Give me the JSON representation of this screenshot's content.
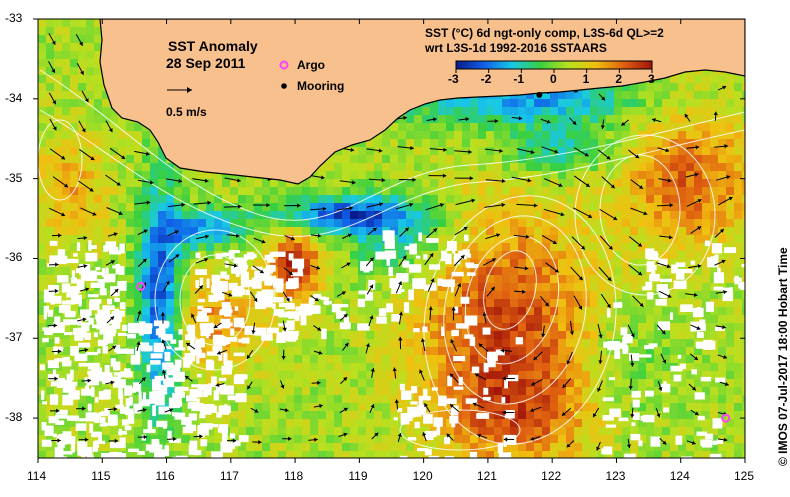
{
  "map": {
    "title_line1": "SST Anomaly",
    "title_line2": "28 Sep 2011",
    "scale_label": "0.5 m/s",
    "legend": {
      "argo": "Argo",
      "mooring": "Mooring"
    },
    "colorbar": {
      "title_line1": "SST (°C) 6d ngt-only comp, L3S-6d QL>=2",
      "title_line2": "wrt L3S-1d 1992-2016 SSTAARS",
      "ticks": [
        "-3",
        "-2",
        "-1",
        "0",
        "1",
        "2",
        "3"
      ],
      "range": [
        -3,
        3
      ]
    },
    "credit": "© IMOS 07-Jul-2017 18:00 Hobart Time",
    "lon_range": [
      114,
      125
    ],
    "lat_range": [
      -38.5,
      -33
    ],
    "lon_ticks": [
      "114",
      "115",
      "116",
      "117",
      "118",
      "119",
      "120",
      "121",
      "122",
      "123",
      "124",
      "125"
    ],
    "lat_ticks": [
      "-33",
      "-34",
      "-35",
      "-36",
      "-37",
      "-38"
    ],
    "argo_floats": [
      {
        "lon": 115.6,
        "lat": -36.35
      },
      {
        "lon": 124.7,
        "lat": -38.0
      }
    ],
    "mooring": {
      "lon": 121.8,
      "lat": -33.95
    },
    "colors": {
      "land": "#f8c08c",
      "coast": "#000000",
      "ocean_base": "#6cc43c",
      "scale": [
        "#0a1a8c",
        "#1060e8",
        "#18c8e8",
        "#38d040",
        "#b8e020",
        "#f0c010",
        "#e06010",
        "#a01408"
      ],
      "argo": "#ff40ff",
      "contour": "#ffffff"
    }
  }
}
